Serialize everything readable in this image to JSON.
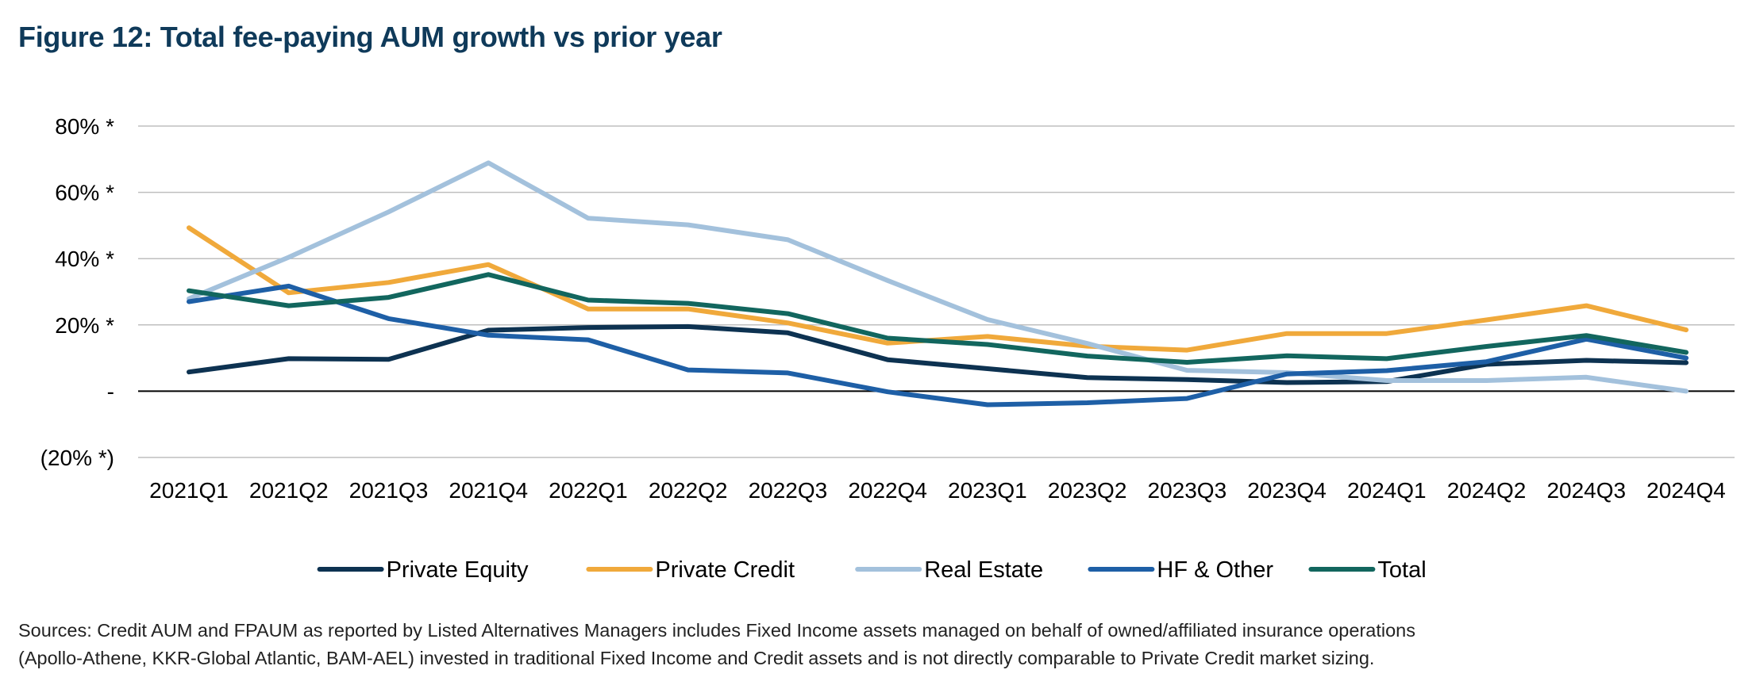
{
  "title": "Figure 12: Total fee-paying AUM growth vs prior year",
  "source_note": {
    "line1": "Sources: Credit AUM and FPAUM as reported by Listed Alternatives Managers includes Fixed Income assets managed on behalf of owned/affiliated insurance operations",
    "line2": "(Apollo-Athene, KKR-Global Atlantic, BAM-AEL) invested in traditional Fixed Income and Credit assets and is not directly comparable to Private Credit market sizing."
  },
  "chart_data": {
    "type": "line",
    "title": "Figure 12: Total fee-paying AUM growth vs prior year",
    "xlabel": "",
    "ylabel": "",
    "ylim": [
      -20,
      80
    ],
    "yticks": [
      {
        "value": 80,
        "label": "80% *"
      },
      {
        "value": 60,
        "label": "60% *"
      },
      {
        "value": 40,
        "label": "40% *"
      },
      {
        "value": 20,
        "label": "20% *"
      },
      {
        "value": 0,
        "label": "-"
      },
      {
        "value": -20,
        "label": "(20% *)"
      }
    ],
    "grid": true,
    "legend": "bottom",
    "categories": [
      "2021Q1",
      "2021Q2",
      "2021Q3",
      "2021Q4",
      "2022Q1",
      "2022Q2",
      "2022Q3",
      "2022Q4",
      "2023Q1",
      "2023Q2",
      "2023Q3",
      "2023Q4",
      "2024Q1",
      "2024Q2",
      "2024Q3",
      "2024Q4"
    ],
    "series": [
      {
        "name": "Private Equity",
        "color": "#0d3251",
        "values": [
          5.8,
          9.8,
          9.6,
          18.4,
          19.2,
          19.5,
          17.6,
          9.5,
          6.8,
          4.1,
          3.5,
          2.6,
          2.9,
          8.1,
          9.3,
          8.6
        ]
      },
      {
        "name": "Private Credit",
        "color": "#f0a93b",
        "values": [
          49.3,
          29.7,
          32.8,
          38.2,
          24.8,
          24.8,
          20.6,
          14.5,
          16.5,
          13.6,
          12.4,
          17.4,
          17.4,
          21.5,
          25.8,
          18.5
        ]
      },
      {
        "name": "Real Estate",
        "color": "#a3c1dc",
        "values": [
          27.9,
          40.4,
          54.1,
          68.9,
          52.2,
          50.2,
          45.7,
          33.4,
          21.6,
          14.4,
          6.3,
          5.6,
          3.2,
          3.2,
          4.2,
          0.0
        ]
      },
      {
        "name": "HF & Other",
        "color": "#1e5fa6",
        "values": [
          27.0,
          31.7,
          21.9,
          16.9,
          15.5,
          6.4,
          5.5,
          -0.2,
          -4.1,
          -3.5,
          -2.2,
          5.2,
          6.2,
          8.9,
          15.7,
          10.0
        ]
      },
      {
        "name": "Total",
        "color": "#12665e",
        "values": [
          30.3,
          25.8,
          28.3,
          35.2,
          27.5,
          26.5,
          23.4,
          16.0,
          14.1,
          10.6,
          8.7,
          10.7,
          9.8,
          13.5,
          16.8,
          11.7
        ]
      }
    ]
  }
}
